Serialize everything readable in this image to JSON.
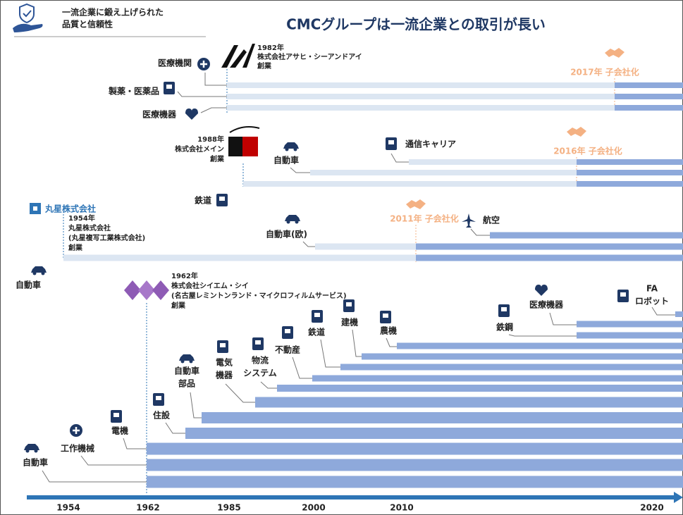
{
  "header": {
    "tagline": [
      "一流企業に鍛え上げられた",
      "品質と信頼性"
    ],
    "title": "CMCグループは一流企業との取引が長い"
  },
  "groups": [
    {
      "company": [
        "1982年",
        "株式会社アサヒ・シーアンドアイ",
        "創業"
      ],
      "acquired": "2017年 子会社化",
      "industries": [
        [
          "医療機関"
        ],
        [
          "製薬・医薬品"
        ],
        [
          "医療機器"
        ]
      ]
    },
    {
      "company": [
        "1988年",
        "株式会社メイン",
        "創業"
      ],
      "acquired": "2016年 子会社化",
      "industries": [
        [
          "通信キャリア"
        ],
        [
          "自動車"
        ],
        [
          "鉄道"
        ]
      ]
    },
    {
      "logo": "丸星株式会社",
      "company": [
        "1954年",
        "丸星株式会社",
        "(丸星複写工業株式会社)",
        "創業"
      ],
      "acquired": "2011年 子会社化",
      "industries": [
        [
          "航空"
        ],
        [
          "自動車(欧)"
        ],
        [
          "自動車"
        ]
      ]
    },
    {
      "company": [
        "1962年",
        "株式会社シイエム・シイ",
        "(名古屋レミントンランド・マイクロフィルムサービス)",
        "創業"
      ],
      "industries": [
        [
          "FA",
          "ロボット"
        ],
        [
          "医療機器"
        ],
        [
          "鉄鋼"
        ],
        [
          "農機"
        ],
        [
          "建機"
        ],
        [
          "鉄道"
        ],
        [
          "不動産"
        ],
        [
          "物流",
          "システム"
        ],
        [
          "電気",
          "機器"
        ],
        [
          "自動車",
          "部品"
        ],
        [
          "住設"
        ],
        [
          "電機"
        ],
        [
          "工作機械"
        ],
        [
          "自動車"
        ]
      ]
    }
  ],
  "axis": [
    "1954",
    "1962",
    "1985",
    "2000",
    "2010",
    "2020"
  ]
}
